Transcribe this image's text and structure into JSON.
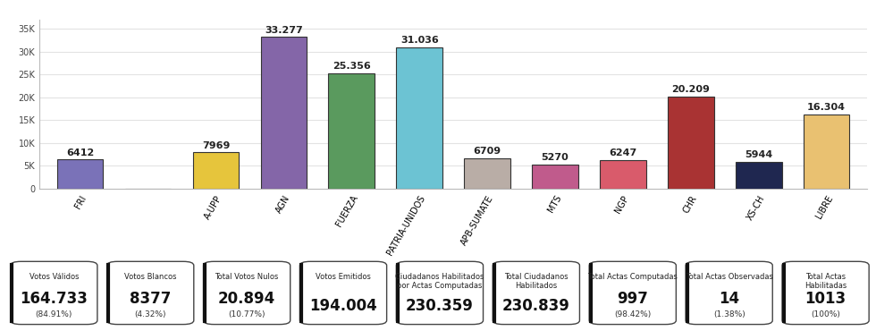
{
  "chart_data": {
    "type": "bar",
    "categories": [
      "FRI",
      null,
      "A-UPP",
      "AGN",
      "FUERZA",
      "PATRIA-UNIDOS",
      "APB-SUMATE",
      "MTS",
      "NGP",
      "CHR",
      "XS-CH",
      "LIBRE"
    ],
    "values": [
      6412,
      0,
      7969,
      33277,
      25356,
      31036,
      6709,
      5270,
      6247,
      20209,
      5944,
      16304
    ],
    "value_labels": [
      "6412",
      null,
      "7969",
      "33.277",
      "25.356",
      "31.036",
      "6709",
      "5270",
      "6247",
      "20.209",
      "5944",
      "16.304"
    ],
    "data_labels": true,
    "colors": [
      "#7a72b8",
      "#9a9a9a",
      "#e6c53c",
      "#8466a8",
      "#5a9a5e",
      "#6cc3d3",
      "#b9ada6",
      "#c05b8c",
      "#d95b6b",
      "#a93333",
      "#1f2750",
      "#e9c171"
    ],
    "ylim": [
      0,
      37000
    ],
    "yticks": [
      0,
      {
        "value": 5000,
        "label": "5K"
      },
      {
        "value": 10000,
        "label": "10K"
      },
      {
        "value": 15000,
        "label": "15K"
      },
      {
        "value": 20000,
        "label": "20K"
      },
      {
        "value": 25000,
        "label": "25K"
      },
      {
        "value": 30000,
        "label": "30K"
      },
      {
        "value": 35000,
        "label": "35K"
      }
    ],
    "grid": true
  },
  "summary": [
    {
      "label": "Votos Válidos",
      "value": "164.733",
      "percent": "(84.91%)"
    },
    {
      "label": "Votos Blancos",
      "value": "8377",
      "percent": "(4.32%)"
    },
    {
      "label": "Total Votos Nulos",
      "value": "20.894",
      "percent": "(10.77%)"
    },
    {
      "label": "Votos Emitidos",
      "value": "194.004"
    },
    {
      "label": "Ciudadanos Habilitados por Actas Computadas",
      "value": "230.359"
    },
    {
      "label": "Total Ciudadanos Habilitados",
      "value": "230.839"
    },
    {
      "label": "Total Actas Computadas",
      "value": "997",
      "percent": "(98.42%)"
    },
    {
      "label": "Total Actas Observadas",
      "value": "14",
      "percent": "(1.38%)"
    },
    {
      "label": "Total Actas Habilitadas",
      "value": "1013",
      "percent": "(100%)"
    }
  ]
}
